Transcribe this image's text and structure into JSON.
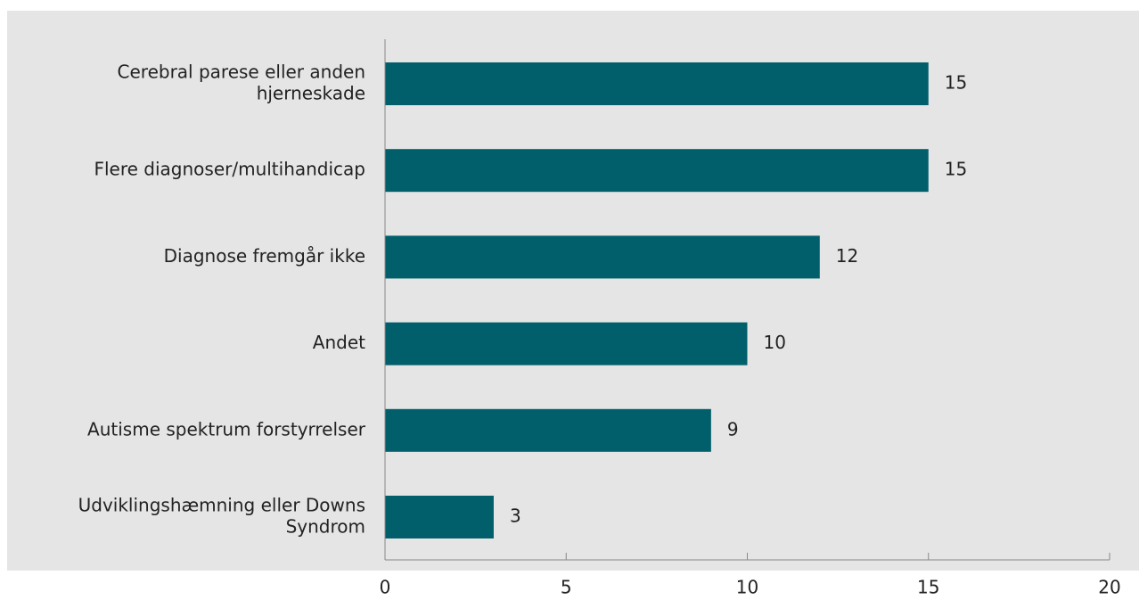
{
  "chart_data": {
    "type": "bar",
    "orientation": "horizontal",
    "categories": [
      [
        "Cerebral parese eller anden",
        "hjerneskade"
      ],
      [
        "Flere diagnoser/multihandicap"
      ],
      [
        "Diagnose fremgår ikke"
      ],
      [
        "Andet"
      ],
      [
        "Autisme spektrum forstyrrelser"
      ],
      [
        "Udviklingshæmning eller Downs",
        "Syndrom"
      ]
    ],
    "values": [
      15,
      15,
      12,
      10,
      9,
      3
    ],
    "value_labels": [
      "15",
      "15",
      "12",
      "10",
      "9",
      "3"
    ],
    "xlim": [
      0,
      20
    ],
    "xticks": [
      0,
      5,
      10,
      15,
      20
    ],
    "xtick_labels": [
      "0",
      "5",
      "10",
      "15",
      "20"
    ],
    "grid": false,
    "legend": "none",
    "colors": {
      "bar": "#005f6b",
      "background": "#e5e5e5",
      "axis": "#888888"
    }
  }
}
